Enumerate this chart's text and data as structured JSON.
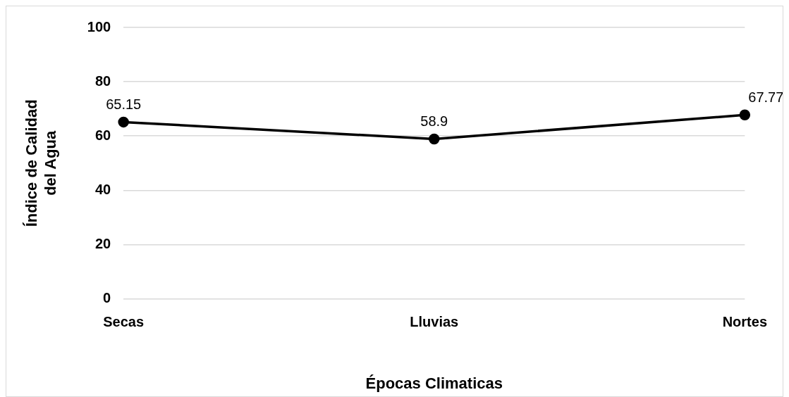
{
  "chart_data": {
    "type": "line",
    "xlabel": "Épocas Climaticas",
    "ylabel": "Índice de Calidad\ndel Agua",
    "categories": [
      "Secas",
      "Lluvias",
      "Nortes"
    ],
    "series": [
      {
        "color": "#000000",
        "values": [
          65.15,
          58.9,
          67.77
        ]
      }
    ],
    "ylim": [
      0,
      100
    ],
    "yticks": [
      0,
      20,
      40,
      60,
      80,
      100
    ],
    "grid": "y",
    "legend": false,
    "marker": "circle",
    "line_style": "solid",
    "data_labels": true
  }
}
